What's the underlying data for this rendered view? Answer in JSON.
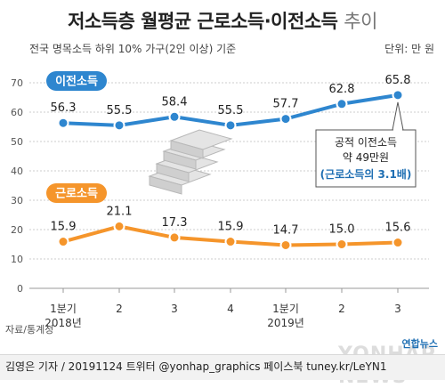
{
  "title_main": "저소득층 월평균 근로소득·이전소득",
  "title_suffix": "추이",
  "subtitle": "전국 명목소득 하위 10% 가구(2인 이상) 기준",
  "unit": "단위: 만 원",
  "source": "자료/통계청",
  "footer": "김영은 기자 / 20191124  트위터 @yonhap_graphics  페이스북 tuney.kr/LeYN1",
  "logo": "연합뉴스",
  "watermark": "YONHAP NEWS",
  "colors": {
    "transfer": "#2e86cf",
    "earned": "#f5952b",
    "grid": "#cccccc",
    "annotation": "#1f6fb3"
  },
  "annotation": {
    "line1": "공적 이전소득",
    "line2": "약 49만원",
    "line3": "(근로소득의 3.1배)"
  },
  "chart_data": {
    "type": "line",
    "categories": [
      "1분기",
      "2",
      "3",
      "4",
      "1분기",
      "2",
      "3"
    ],
    "year_labels": [
      "2018년",
      "",
      "",
      "",
      "2019년",
      "",
      ""
    ],
    "ylim": [
      0,
      70
    ],
    "yticks": [
      0,
      10,
      20,
      30,
      40,
      50,
      60,
      70
    ],
    "grid": true,
    "series": [
      {
        "name": "이전소득",
        "values": [
          56.3,
          55.5,
          58.4,
          55.5,
          57.7,
          62.8,
          65.8
        ]
      },
      {
        "name": "근로소득",
        "values": [
          15.9,
          21.1,
          17.3,
          15.9,
          14.7,
          15.0,
          15.6
        ]
      }
    ]
  }
}
